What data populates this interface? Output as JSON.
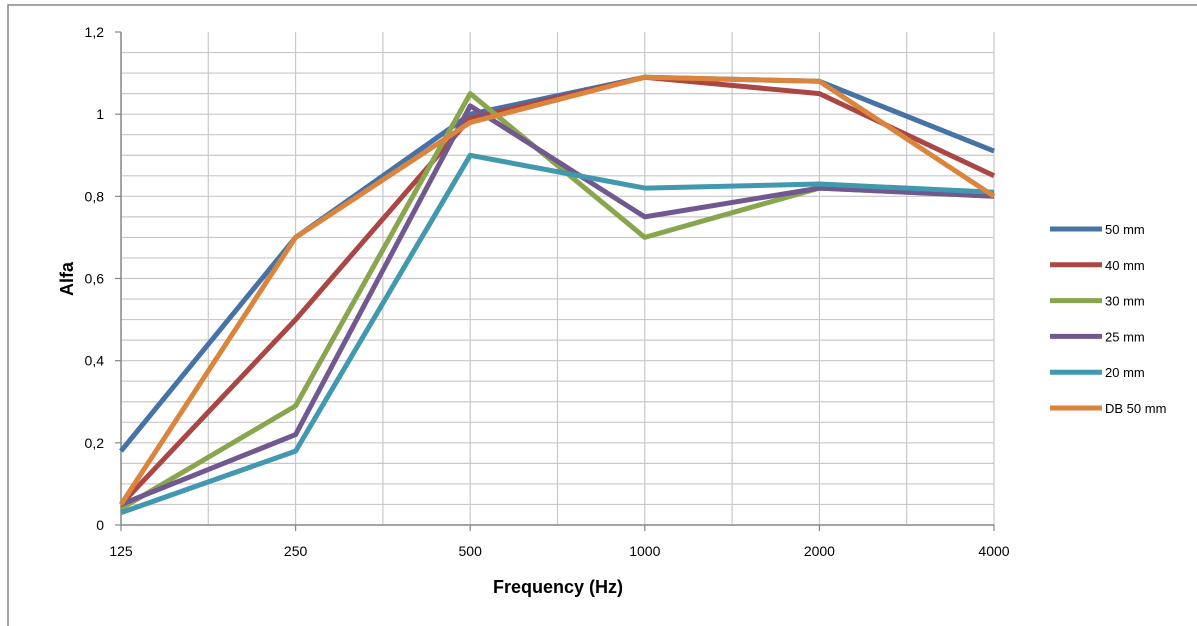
{
  "chart_data": {
    "type": "line",
    "title": "",
    "xlabel": "Frequency (Hz)",
    "ylabel": "Alfa",
    "categories": [
      "125",
      "250",
      "500",
      "1000",
      "2000",
      "4000"
    ],
    "ylim": [
      0,
      1.2
    ],
    "y_ticks": [
      "0",
      "0,2",
      "0,4",
      "0,6",
      "0,8",
      "1",
      "1,2"
    ],
    "grid": true,
    "legend_position": "right",
    "series": [
      {
        "name": "50 mm",
        "color": "#4572A7",
        "values": [
          0.18,
          0.7,
          1.0,
          1.09,
          1.08,
          0.91
        ]
      },
      {
        "name": "40 mm",
        "color": "#AA4643",
        "values": [
          0.05,
          0.5,
          0.99,
          1.09,
          1.05,
          0.85
        ]
      },
      {
        "name": "30 mm",
        "color": "#89A54E",
        "values": [
          0.04,
          0.29,
          1.05,
          0.7,
          0.82,
          0.8
        ]
      },
      {
        "name": "25 mm",
        "color": "#71588F",
        "values": [
          0.05,
          0.22,
          1.02,
          0.75,
          0.82,
          0.8
        ]
      },
      {
        "name": "20 mm",
        "color": "#4198AF",
        "values": [
          0.03,
          0.18,
          0.9,
          0.82,
          0.83,
          0.81
        ]
      },
      {
        "name": "DB 50 mm",
        "color": "#DB843D",
        "values": [
          0.05,
          0.7,
          0.98,
          1.09,
          1.08,
          0.8
        ]
      }
    ]
  }
}
